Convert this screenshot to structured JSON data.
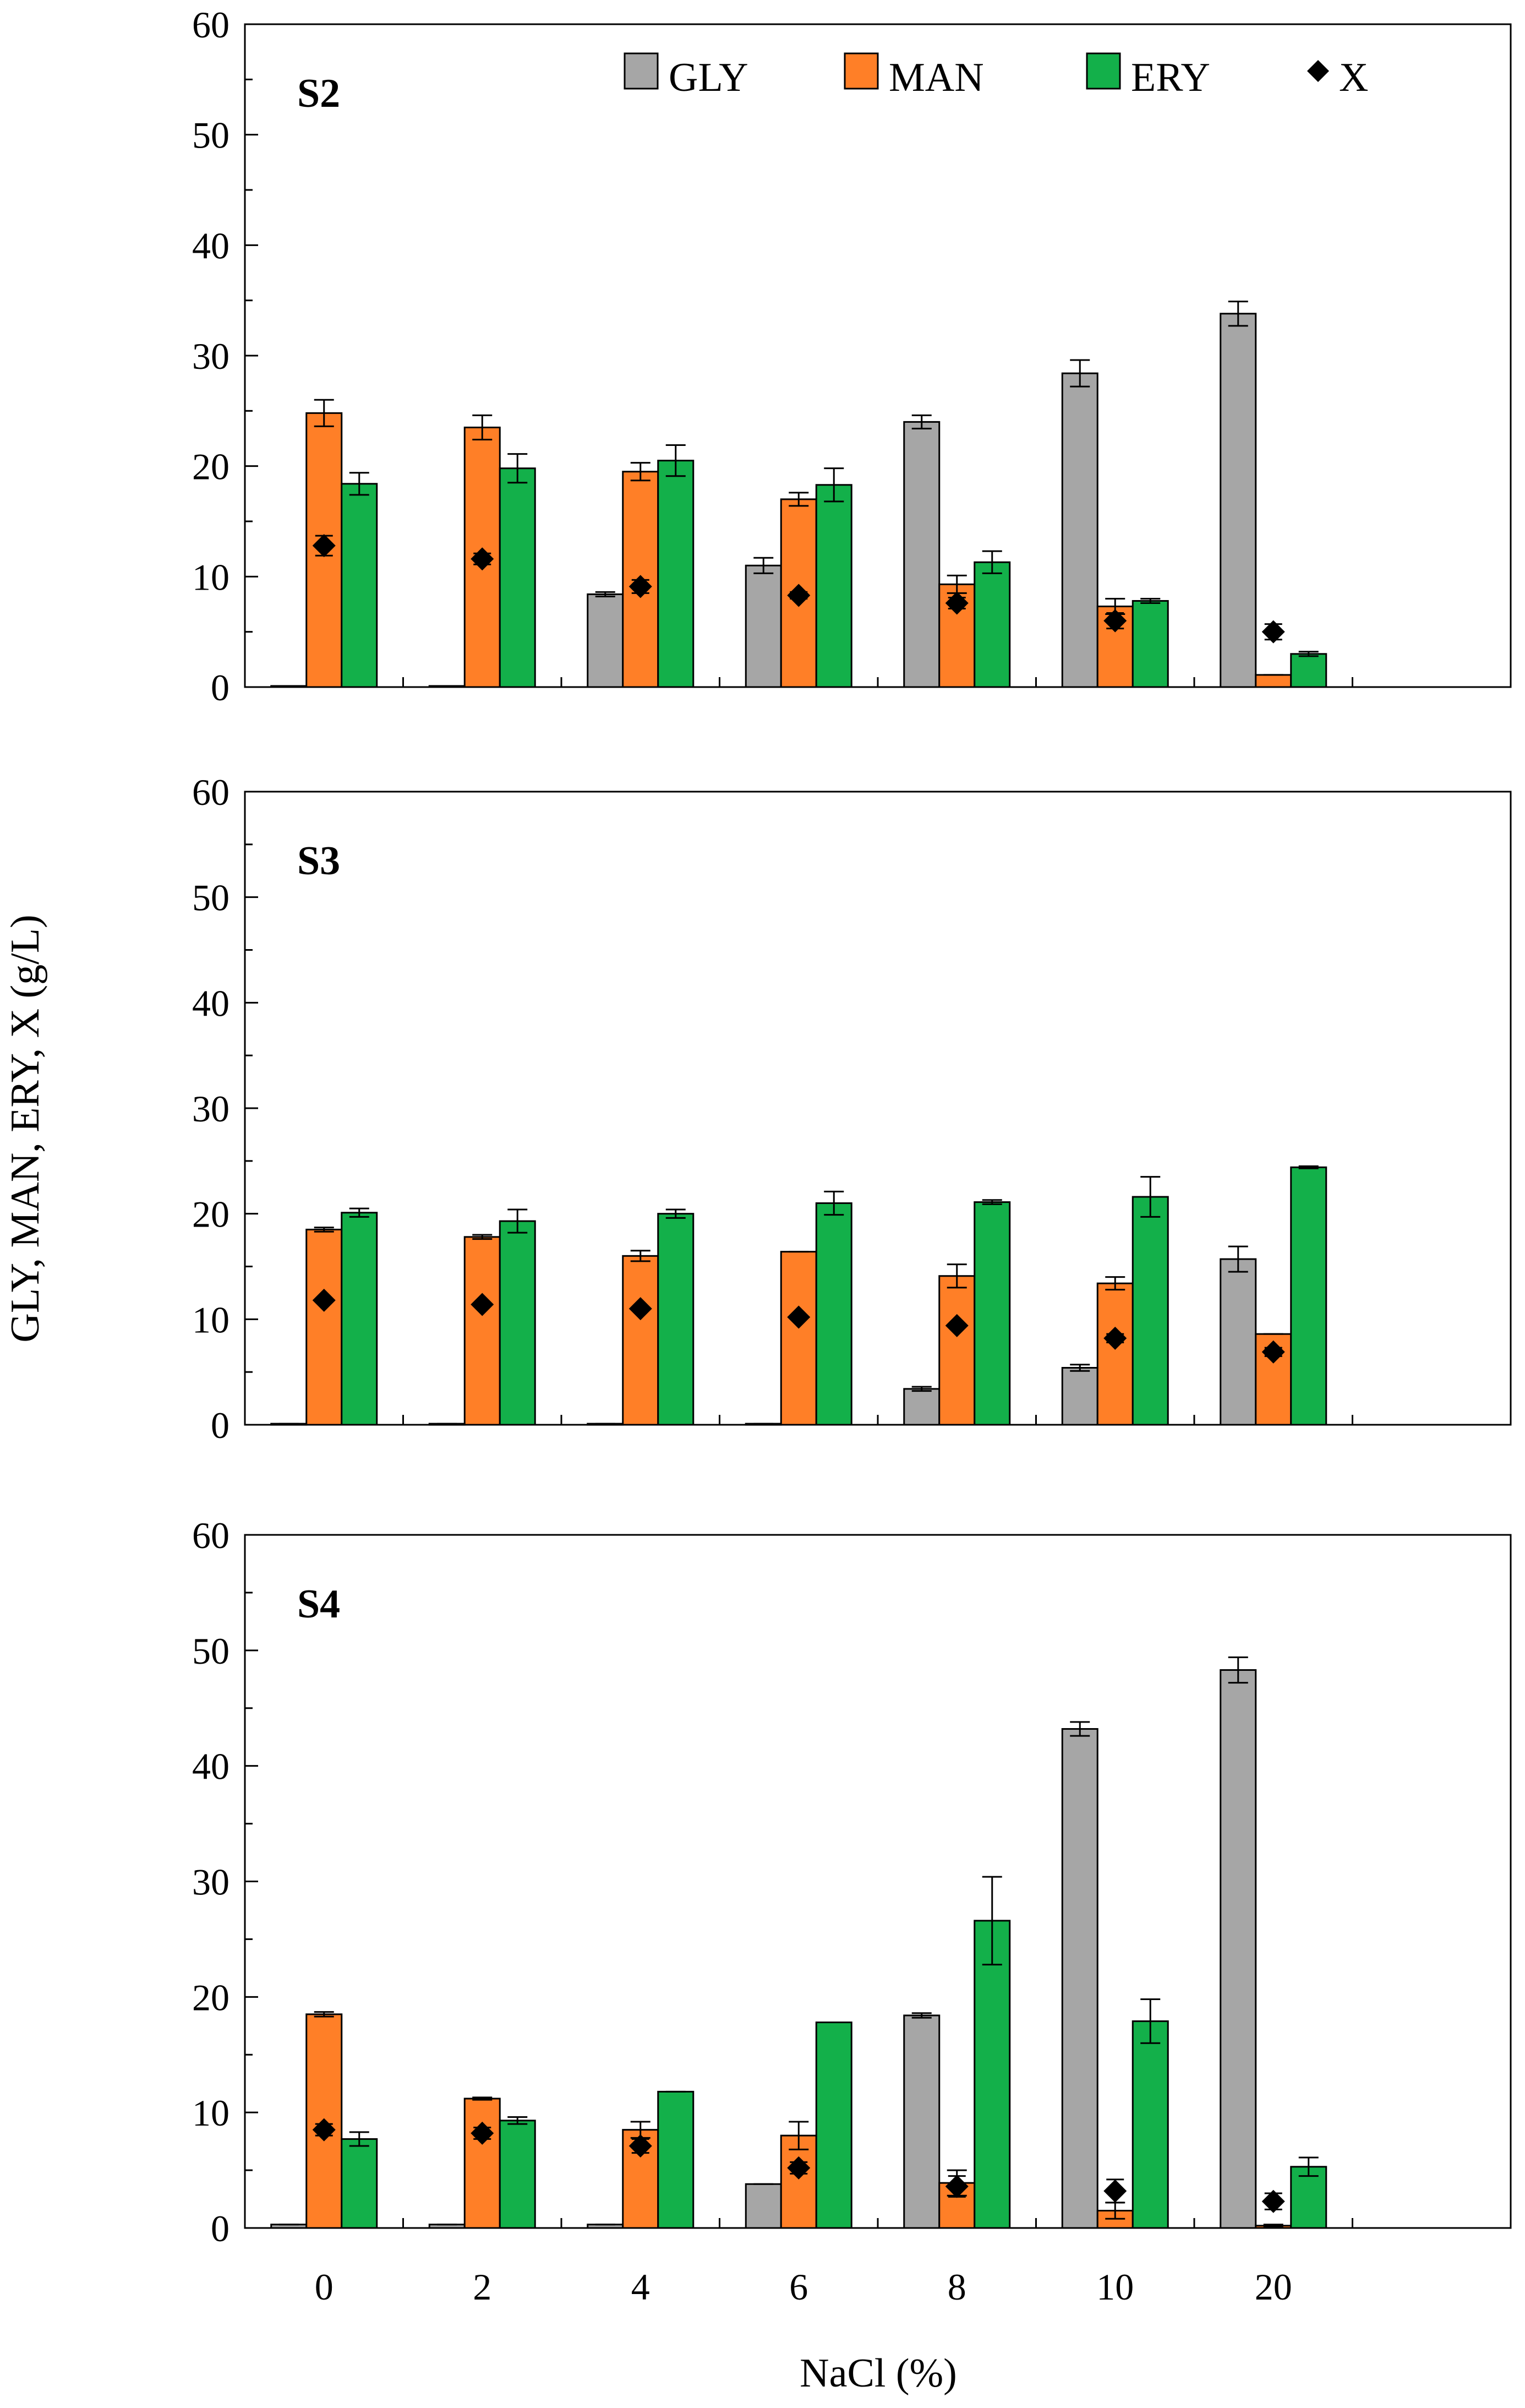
{
  "chart_data": {
    "type": "bar",
    "xlabel": "NaCl (%)",
    "ylabel": "GLY, MAN, ERY, X (g/L)",
    "categories": [
      "0",
      "2",
      "4",
      "6",
      "8",
      "10",
      "20"
    ],
    "ylim": [
      0,
      60
    ],
    "yticks": [
      "0",
      "10",
      "20",
      "30",
      "40",
      "50",
      "60"
    ],
    "legend": {
      "position": "top-right of first panel",
      "entries": [
        {
          "name": "GLY",
          "marker": "bar",
          "color": "#a6a6a6"
        },
        {
          "name": "MAN",
          "marker": "bar",
          "color": "#ff7f27"
        },
        {
          "name": "ERY",
          "marker": "bar",
          "color": "#13b04a"
        },
        {
          "name": "X",
          "marker": "diamond",
          "color": "#000000"
        }
      ]
    },
    "panels": [
      {
        "label": "S2",
        "series": [
          {
            "name": "GLY",
            "values": [
              0.1,
              0.1,
              8.4,
              11.0,
              24.0,
              28.4,
              33.8
            ],
            "errors": [
              0,
              0,
              0.2,
              0.7,
              0.6,
              1.2,
              1.1
            ]
          },
          {
            "name": "MAN",
            "values": [
              24.8,
              23.5,
              19.5,
              17.0,
              9.3,
              7.3,
              1.1
            ],
            "errors": [
              1.2,
              1.1,
              0.8,
              0.6,
              0.8,
              0.7,
              0
            ]
          },
          {
            "name": "ERY",
            "values": [
              18.4,
              19.8,
              20.5,
              18.3,
              11.3,
              7.8,
              3.0
            ],
            "errors": [
              1.0,
              1.3,
              1.4,
              1.5,
              1.0,
              0.2,
              0.2
            ]
          },
          {
            "name": "X",
            "values": [
              12.8,
              11.6,
              9.1,
              8.3,
              7.6,
              6.0,
              5.0
            ],
            "errors": [
              0.9,
              0.5,
              0.6,
              0.3,
              0.5,
              0.7,
              0.7
            ]
          }
        ]
      },
      {
        "label": "S3",
        "series": [
          {
            "name": "GLY",
            "values": [
              0.1,
              0.1,
              0.1,
              0.1,
              3.4,
              5.4,
              15.7
            ],
            "errors": [
              0,
              0,
              0,
              0,
              0.2,
              0.3,
              1.2
            ]
          },
          {
            "name": "MAN",
            "values": [
              18.5,
              17.8,
              16.0,
              16.4,
              14.1,
              13.4,
              8.6
            ],
            "errors": [
              0.2,
              0.2,
              0.5,
              0,
              1.1,
              0.6,
              0
            ]
          },
          {
            "name": "ERY",
            "values": [
              20.1,
              19.3,
              20.0,
              21.0,
              21.1,
              21.6,
              24.4
            ],
            "errors": [
              0.4,
              1.1,
              0.4,
              1.1,
              0.2,
              1.9,
              0.1
            ]
          },
          {
            "name": "X",
            "values": [
              11.8,
              11.4,
              11.0,
              10.2,
              9.4,
              8.2,
              6.9
            ],
            "errors": [
              0,
              0,
              0,
              0,
              0,
              0.4,
              0.4
            ]
          }
        ]
      },
      {
        "label": "S4",
        "series": [
          {
            "name": "GLY",
            "values": [
              0.3,
              0.3,
              0.3,
              3.8,
              18.4,
              43.2,
              48.3
            ],
            "errors": [
              0,
              0,
              0,
              0,
              0.2,
              0.6,
              1.1
            ]
          },
          {
            "name": "MAN",
            "values": [
              18.5,
              11.2,
              8.5,
              8.0,
              3.9,
              1.5,
              0.2
            ],
            "errors": [
              0.2,
              0.1,
              0.7,
              1.2,
              1.1,
              0.7,
              0.1
            ]
          },
          {
            "name": "ERY",
            "values": [
              7.7,
              9.3,
              11.8,
              17.8,
              26.6,
              17.9,
              5.3
            ],
            "errors": [
              0.6,
              0.3,
              0,
              0,
              3.8,
              1.9,
              0.8
            ]
          },
          {
            "name": "X",
            "values": [
              8.5,
              8.2,
              7.1,
              5.2,
              3.6,
              3.2,
              2.3
            ],
            "errors": [
              0.5,
              0.5,
              0.6,
              0.5,
              0.9,
              1.0,
              0.7
            ]
          }
        ]
      }
    ]
  }
}
